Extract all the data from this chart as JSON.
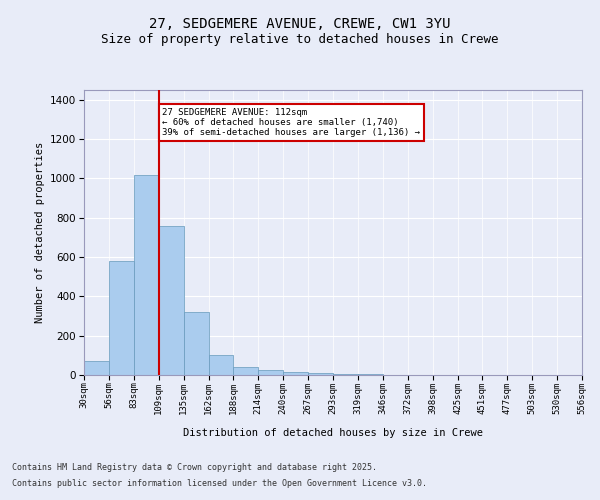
{
  "title_line1": "27, SEDGEMERE AVENUE, CREWE, CW1 3YU",
  "title_line2": "Size of property relative to detached houses in Crewe",
  "xlabel": "Distribution of detached houses by size in Crewe",
  "ylabel": "Number of detached properties",
  "bar_values": [
    70,
    580,
    1020,
    760,
    320,
    100,
    40,
    25,
    15,
    10,
    5,
    3,
    2,
    2,
    2,
    2,
    2,
    2,
    2,
    2
  ],
  "bar_labels": [
    "30sqm",
    "56sqm",
    "83sqm",
    "109sqm",
    "135sqm",
    "162sqm",
    "188sqm",
    "214sqm",
    "240sqm",
    "267sqm",
    "293sqm",
    "319sqm",
    "346sqm",
    "372sqm",
    "398sqm",
    "425sqm",
    "451sqm",
    "477sqm",
    "503sqm",
    "530sqm",
    "556sqm"
  ],
  "bar_color": "#aaccee",
  "bar_edge_color": "#6699bb",
  "vline_x": 3,
  "vline_color": "#cc0000",
  "annotation_title": "27 SEDGEMERE AVENUE: 112sqm",
  "annotation_line1": "← 60% of detached houses are smaller (1,740)",
  "annotation_line2": "39% of semi-detached houses are larger (1,136) →",
  "annotation_border_color": "#cc0000",
  "ylim": [
    0,
    1450
  ],
  "yticks": [
    0,
    200,
    400,
    600,
    800,
    1000,
    1200,
    1400
  ],
  "bg_color": "#e8ecf8",
  "plot_bg_color": "#e8ecf8",
  "footer_line1": "Contains HM Land Registry data © Crown copyright and database right 2025.",
  "footer_line2": "Contains public sector information licensed under the Open Government Licence v3.0.",
  "title_fontsize": 10,
  "subtitle_fontsize": 9
}
